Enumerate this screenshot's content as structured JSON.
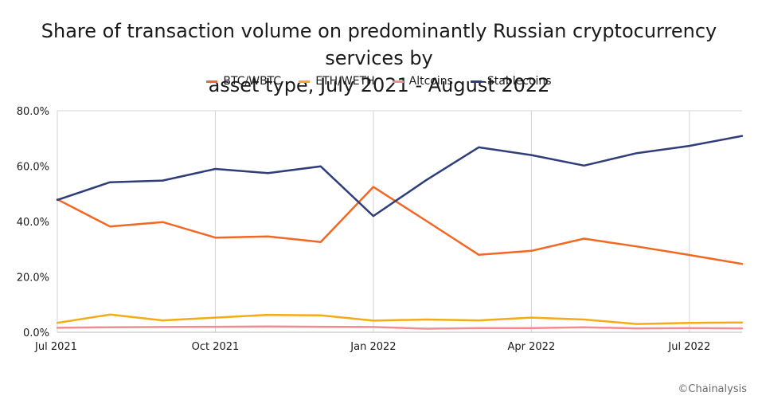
{
  "chart_data": {
    "type": "line",
    "title_line1": "Share of transaction volume on predominantly Russian cryptocurrency services by",
    "title_line2": "asset type, July 2021 - August 2022",
    "xlabel": "",
    "ylabel": "",
    "ylim": [
      0,
      80
    ],
    "y_ticks": [
      "80.0%",
      "60.0%",
      "40.0%",
      "20.0%",
      "0.0%"
    ],
    "y_tick_values": [
      80,
      60,
      40,
      20,
      0
    ],
    "x_tick_labels": [
      "Jul 2021",
      "Oct 2021",
      "Jan 2022",
      "Apr 2022",
      "Jul 2022"
    ],
    "x_tick_indices": [
      0,
      3,
      6,
      9,
      12
    ],
    "x": [
      "Jul 2021",
      "Aug 2021",
      "Sep 2021",
      "Oct 2021",
      "Nov 2021",
      "Dec 2021",
      "Jan 2022",
      "Feb 2022",
      "Mar 2022",
      "Apr 2022",
      "May 2022",
      "Jun 2022",
      "Jul 2022",
      "Aug 2022"
    ],
    "grid": "vertical",
    "legend_position": "top",
    "series": [
      {
        "name": "BTC/WBTC",
        "color": "#f26722",
        "values": [
          48.0,
          38.2,
          39.8,
          34.2,
          34.6,
          32.6,
          52.5,
          40.3,
          28.0,
          29.4,
          33.8,
          31.0,
          27.9,
          24.7
        ]
      },
      {
        "name": "ETH/WETH",
        "color": "#f5ab16",
        "values": [
          3.4,
          6.4,
          4.3,
          5.3,
          6.3,
          6.1,
          4.2,
          4.6,
          4.3,
          5.3,
          4.6,
          3.0,
          3.4,
          3.5
        ]
      },
      {
        "name": "Altcoins",
        "color": "#f28b92",
        "values": [
          1.6,
          1.8,
          1.9,
          2.0,
          2.1,
          2.0,
          1.9,
          1.3,
          1.5,
          1.5,
          1.8,
          1.4,
          1.5,
          1.4
        ]
      },
      {
        "name": "Stablecoins",
        "color": "#2f3d7a",
        "values": [
          47.8,
          54.2,
          54.8,
          59.0,
          57.5,
          59.9,
          42.0,
          54.9,
          66.8,
          64.0,
          60.2,
          64.7,
          67.3,
          70.9
        ]
      }
    ]
  },
  "watermark": "©Chainalysis"
}
